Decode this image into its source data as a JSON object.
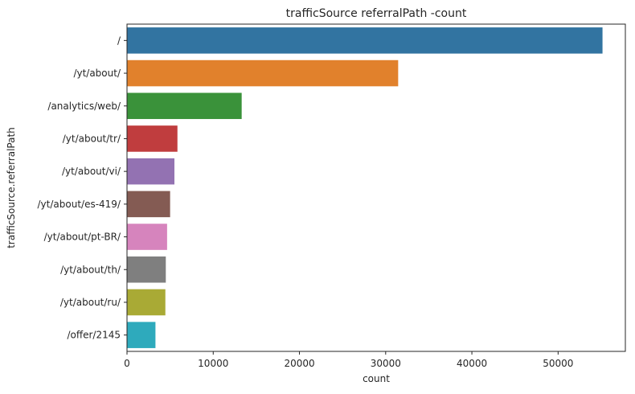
{
  "chart_data": {
    "type": "bar",
    "orientation": "horizontal",
    "title": "trafficSource referralPath -count",
    "xlabel": "count",
    "ylabel": "trafficSource.referralPath",
    "xlim": [
      0,
      57800
    ],
    "xticks": [
      0,
      10000,
      20000,
      30000,
      40000,
      50000
    ],
    "xtick_labels": [
      "0",
      "10000",
      "20000",
      "30000",
      "40000",
      "50000"
    ],
    "grid": false,
    "categories": [
      "/",
      "/yt/about/",
      "/analytics/web/",
      "/yt/about/tr/",
      "/yt/about/vi/",
      "/yt/about/es-419/",
      "/yt/about/pt-BR/",
      "/yt/about/th/",
      "/yt/about/ru/",
      "/offer/2145"
    ],
    "values": [
      55150,
      31450,
      13300,
      5850,
      5500,
      5000,
      4650,
      4500,
      4450,
      3300
    ],
    "colors": [
      "#3274a1",
      "#e1812c",
      "#3a923a",
      "#c03d3e",
      "#9372b2",
      "#845b53",
      "#d684bd",
      "#7f7f7f",
      "#a9aa35",
      "#2eaabc"
    ]
  }
}
